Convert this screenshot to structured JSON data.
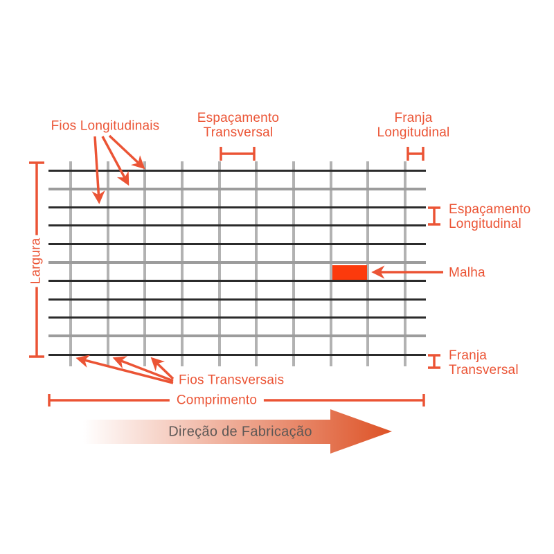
{
  "labels": {
    "fios_longitudinais": "Fios Longitudinais",
    "espacamento_transversal": "Espaçamento\nTransversal",
    "franja_longitudinal": "Franja\nLongitudinal",
    "largura": "Largura",
    "espacamento_longitudinal": "Espaçamento\nLongitudinal",
    "malha": "Malha",
    "franja_transversal": "Franja\nTransversal",
    "fios_transversais": "Fios Transversais",
    "comprimento": "Comprimento",
    "direcao_de_fabricacao": "Direção de Fabricação"
  },
  "colors": {
    "accent": "#EB5435",
    "malha_fill": "#FC3A0C",
    "wire_black": "#2B2B2B",
    "wire_gray_horizontal": "#9C9C9C",
    "wire_gray_vertical": "#B2B2B2",
    "direction_arrow_start": "#FFFFFF",
    "direction_arrow_end": "#DD5226",
    "direction_text": "#5C5755"
  },
  "grid": {
    "longitudinal_wires": 11,
    "transversal_wires": 10,
    "gray_longitudinal_rows": [
      2,
      6,
      10
    ]
  }
}
